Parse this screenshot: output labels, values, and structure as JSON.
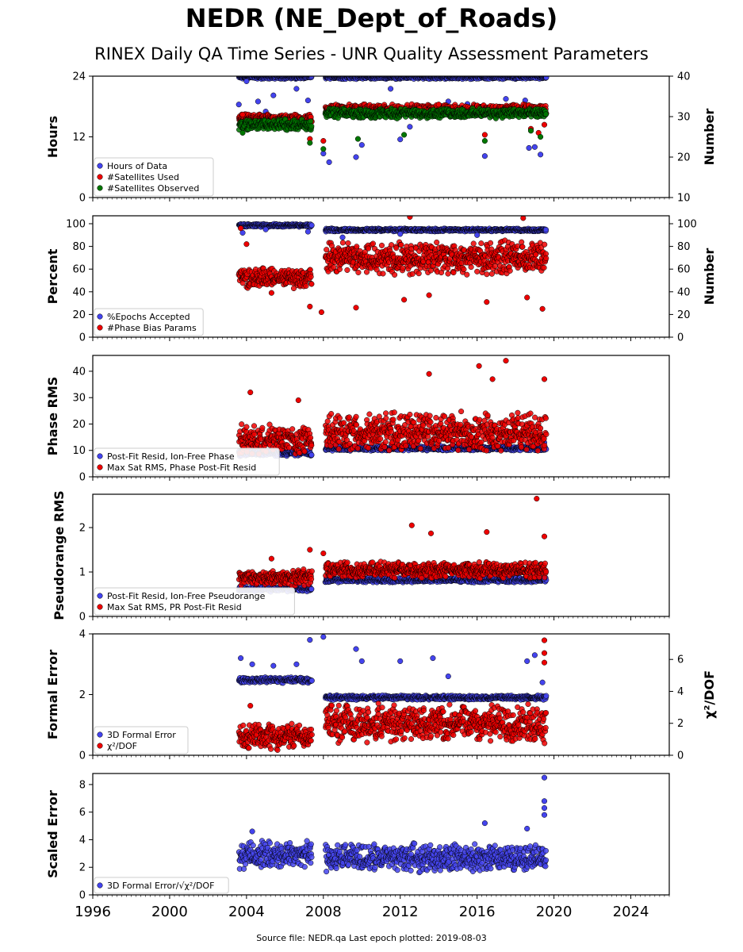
{
  "figure": {
    "title": "NEDR (NE_Dept_of_Roads)",
    "subtitle": "RINEX Daily QA Time Series - UNR Quality Assessment Parameters",
    "source": "Source file: NEDR.qa Last epoch plotted: 2019-08-03"
  },
  "colors": {
    "blue": "#4444ee",
    "red": "#ee0000",
    "green": "#007700",
    "edge": "#000000"
  },
  "chart_data": [
    {
      "type": "scatter",
      "ylabel": "Hours",
      "y2label": "Number",
      "ylim": [
        0,
        24
      ],
      "y2lim": [
        10,
        40
      ],
      "yticks": [
        "0",
        "12",
        "24"
      ],
      "y2ticks": [
        "10",
        "20",
        "30",
        "40"
      ],
      "legend_loc": "lower-left",
      "series": [
        {
          "name": "Hours of Data",
          "color": "#4444ee",
          "axis": "left",
          "segments": [
            {
              "x": [
                2003.6,
                2007.4
              ],
              "base": 23.8,
              "spread": 0.4,
              "outliers": [
                [
                  2003.6,
                  18.4
                ],
                [
                  2004.0,
                  23.0
                ],
                [
                  2004.6,
                  19.0
                ],
                [
                  2005.0,
                  17.0
                ],
                [
                  2005.4,
                  20.2
                ],
                [
                  2006.6,
                  21.5
                ],
                [
                  2007.2,
                  19.2
                ]
              ]
            },
            {
              "x": [
                2008.1,
                2019.6
              ],
              "base": 23.8,
              "spread": 0.4,
              "outliers": [
                [
                  2008.0,
                  8.7
                ],
                [
                  2008.3,
                  7.0
                ],
                [
                  2009.7,
                  8.0
                ],
                [
                  2010.0,
                  10.4
                ],
                [
                  2011.5,
                  21.5
                ],
                [
                  2012.0,
                  11.5
                ],
                [
                  2012.5,
                  14.0
                ],
                [
                  2013.4,
                  18.0
                ],
                [
                  2014.5,
                  19.0
                ],
                [
                  2015.5,
                  18.5
                ],
                [
                  2016.4,
                  8.2
                ],
                [
                  2017.5,
                  19.5
                ],
                [
                  2018.5,
                  19.2
                ],
                [
                  2018.7,
                  9.8
                ],
                [
                  2019.0,
                  10.0
                ],
                [
                  2019.3,
                  8.5
                ]
              ]
            }
          ]
        },
        {
          "name": "#Satellites Used",
          "color": "#ee0000",
          "axis": "right",
          "segments": [
            {
              "x": [
                2003.6,
                2007.4
              ],
              "base": 29.5,
              "spread": 1.2,
              "outliers": [
                [
                  2007.3,
                  24.5
                ],
                [
                  2003.8,
                  30.5
                ]
              ]
            },
            {
              "x": [
                2008.1,
                2019.6
              ],
              "base": 31.8,
              "spread": 1.4,
              "outliers": [
                [
                  2008.0,
                  24.0
                ],
                [
                  2011.0,
                  31.0
                ],
                [
                  2013.0,
                  32.0
                ],
                [
                  2014.0,
                  33.0
                ],
                [
                  2016.4,
                  25.5
                ],
                [
                  2018.8,
                  27.0
                ],
                [
                  2019.2,
                  26.0
                ],
                [
                  2019.5,
                  28.0
                ]
              ]
            }
          ]
        },
        {
          "name": "#Satellites Observed",
          "color": "#007700",
          "axis": "right",
          "segments": [
            {
              "x": [
                2003.6,
                2007.4
              ],
              "base": 28.0,
              "spread": 1.6,
              "outliers": [
                [
                  2007.3,
                  23.5
                ],
                [
                  2003.8,
                  26.0
                ]
              ]
            },
            {
              "x": [
                2008.1,
                2019.6
              ],
              "base": 30.8,
              "spread": 1.3,
              "outliers": [
                [
                  2008.0,
                  22.0
                ],
                [
                  2009.8,
                  24.5
                ],
                [
                  2012.2,
                  25.5
                ],
                [
                  2016.4,
                  24.0
                ],
                [
                  2018.8,
                  26.5
                ],
                [
                  2019.3,
                  25.0
                ]
              ]
            }
          ]
        }
      ]
    },
    {
      "type": "scatter",
      "ylabel": "Percent",
      "y2label": "Number",
      "ylim": [
        0,
        107
      ],
      "y2lim": [
        0,
        107
      ],
      "yticks": [
        "0",
        "20",
        "40",
        "60",
        "80",
        "100"
      ],
      "y2ticks": [
        "0",
        "20",
        "40",
        "60",
        "80",
        "100"
      ],
      "legend_loc": "lower-left",
      "series": [
        {
          "name": "%Epochs Accepted",
          "color": "#4444ee",
          "axis": "left",
          "segments": [
            {
              "x": [
                2003.6,
                2007.4
              ],
              "base": 98.5,
              "spread": 1.5,
              "outliers": [
                [
                  2003.8,
                  92.0
                ],
                [
                  2005.0,
                  95.0
                ],
                [
                  2007.2,
                  93.0
                ]
              ]
            },
            {
              "x": [
                2008.1,
                2019.6
              ],
              "base": 94.5,
              "spread": 1.5,
              "outliers": [
                [
                  2009.0,
                  88.0
                ],
                [
                  2012.0,
                  91.0
                ],
                [
                  2016.0,
                  90.0
                ]
              ]
            }
          ]
        },
        {
          "name": "#Phase Bias Params",
          "color": "#ee0000",
          "axis": "right",
          "segments": [
            {
              "x": [
                2003.6,
                2007.4
              ],
              "base": 52.0,
              "spread": 10.0,
              "outliers": [
                [
                  2004.0,
                  82.0
                ],
                [
                  2003.7,
                  96.0
                ],
                [
                  2007.3,
                  27.0
                ],
                [
                  2005.3,
                  39.0
                ]
              ]
            },
            {
              "x": [
                2008.1,
                2019.6
              ],
              "base": 70.0,
              "spread": 16.0,
              "outliers": [
                [
                  2007.9,
                  22.0
                ],
                [
                  2009.7,
                  26.0
                ],
                [
                  2012.2,
                  33.0
                ],
                [
                  2013.5,
                  37.0
                ],
                [
                  2016.5,
                  31.0
                ],
                [
                  2018.6,
                  35.0
                ],
                [
                  2019.4,
                  25.0
                ],
                [
                  2012.5,
                  106.0
                ],
                [
                  2018.4,
                  105.0
                ]
              ]
            }
          ]
        }
      ]
    },
    {
      "type": "scatter",
      "ylabel": "Phase RMS",
      "ylim": [
        0,
        46
      ],
      "yticks": [
        "0",
        "10",
        "20",
        "30",
        "40"
      ],
      "legend_loc": "lower-left",
      "series": [
        {
          "name": "Post-Fit Resid, Ion-Free Phase",
          "color": "#4444ee",
          "axis": "left",
          "segments": [
            {
              "x": [
                2003.6,
                2007.4
              ],
              "base": 9.0,
              "spread": 1.2,
              "outliers": []
            },
            {
              "x": [
                2008.1,
                2019.6
              ],
              "base": 10.8,
              "spread": 1.0,
              "outliers": [
                [
                  2019.5,
                  13.0
                ]
              ]
            }
          ]
        },
        {
          "name": "Max Sat RMS, Phase Post-Fit Resid",
          "color": "#ee0000",
          "axis": "left",
          "segments": [
            {
              "x": [
                2003.6,
                2007.4
              ],
              "base": 14.0,
              "spread": 6.0,
              "outliers": [
                [
                  2004.2,
                  32.0
                ],
                [
                  2006.7,
                  29.0
                ]
              ]
            },
            {
              "x": [
                2008.1,
                2019.6
              ],
              "base": 17.0,
              "spread": 8.0,
              "outliers": [
                [
                  2013.5,
                  39.0
                ],
                [
                  2016.1,
                  42.0
                ],
                [
                  2016.8,
                  37.0
                ],
                [
                  2017.5,
                  44.0
                ],
                [
                  2019.5,
                  37.0
                ]
              ]
            }
          ]
        }
      ]
    },
    {
      "type": "scatter",
      "ylabel": "Pseudorange RMS",
      "ylim": [
        0,
        2.75
      ],
      "yticks": [
        "0",
        "1",
        "2"
      ],
      "legend_loc": "lower-left",
      "series": [
        {
          "name": "Post-Fit Resid, Ion-Free Pseudorange",
          "color": "#4444ee",
          "axis": "left",
          "segments": [
            {
              "x": [
                2003.6,
                2007.4
              ],
              "base": 0.62,
              "spread": 0.07,
              "outliers": []
            },
            {
              "x": [
                2008.1,
                2019.6
              ],
              "base": 0.82,
              "spread": 0.06,
              "outliers": [
                [
                  2019.5,
                  0.85
                ]
              ]
            }
          ]
        },
        {
          "name": "Max Sat RMS, PR Post-Fit Resid",
          "color": "#ee0000",
          "axis": "left",
          "segments": [
            {
              "x": [
                2003.6,
                2007.4
              ],
              "base": 0.88,
              "spread": 0.2,
              "outliers": [
                [
                  2007.3,
                  1.5
                ],
                [
                  2005.3,
                  1.3
                ]
              ]
            },
            {
              "x": [
                2008.1,
                2019.6
              ],
              "base": 1.05,
              "spread": 0.2,
              "outliers": [
                [
                  2008.0,
                  1.42
                ],
                [
                  2012.6,
                  2.05
                ],
                [
                  2013.6,
                  1.87
                ],
                [
                  2016.5,
                  1.9
                ],
                [
                  2019.1,
                  2.65
                ],
                [
                  2019.5,
                  1.8
                ]
              ]
            }
          ]
        }
      ]
    },
    {
      "type": "scatter",
      "ylabel": "Formal Error",
      "y2label": "χ²/DOF",
      "ylim": [
        0,
        4
      ],
      "y2lim": [
        0,
        7.6
      ],
      "yticks": [
        "0",
        "2",
        "4"
      ],
      "y2ticks": [
        "0",
        "2",
        "4",
        "6"
      ],
      "legend_loc": "lower-left",
      "series": [
        {
          "name": "3D Formal Error",
          "color": "#4444ee",
          "axis": "left",
          "segments": [
            {
              "x": [
                2003.6,
                2007.4
              ],
              "base": 2.48,
              "spread": 0.1,
              "outliers": [
                [
                  2003.7,
                  3.2
                ],
                [
                  2004.3,
                  3.0
                ],
                [
                  2005.4,
                  2.95
                ],
                [
                  2006.6,
                  3.0
                ],
                [
                  2007.3,
                  3.8
                ],
                [
                  2008.0,
                  3.9
                ]
              ]
            },
            {
              "x": [
                2008.1,
                2019.6
              ],
              "base": 1.9,
              "spread": 0.08,
              "outliers": [
                [
                  2009.7,
                  3.5
                ],
                [
                  2010.0,
                  3.1
                ],
                [
                  2012.0,
                  3.1
                ],
                [
                  2013.7,
                  3.2
                ],
                [
                  2014.5,
                  2.6
                ],
                [
                  2018.6,
                  3.1
                ],
                [
                  2019.0,
                  3.3
                ],
                [
                  2019.4,
                  2.4
                ]
              ]
            }
          ]
        },
        {
          "name": "χ²/DOF",
          "color": "#ee0000",
          "axis": "right",
          "segments": [
            {
              "x": [
                2003.6,
                2007.4
              ],
              "base": 1.2,
              "spread": 0.9,
              "outliers": [
                [
                  2004.2,
                  3.1
                ]
              ]
            },
            {
              "x": [
                2008.1,
                2019.6
              ],
              "base": 2.0,
              "spread": 1.3,
              "outliers": [
                [
                  2019.5,
                  7.2
                ],
                [
                  2019.5,
                  6.4
                ],
                [
                  2019.5,
                  5.8
                ]
              ]
            }
          ]
        }
      ]
    },
    {
      "type": "scatter",
      "ylabel": "Scaled Error",
      "ylim": [
        0,
        8.8
      ],
      "yticks": [
        "0",
        "2",
        "4",
        "6",
        "8"
      ],
      "legend_loc": "lower-left",
      "series": [
        {
          "name": "3D Formal Error/√χ²/DOF",
          "color": "#4444ee",
          "axis": "left",
          "segments": [
            {
              "x": [
                2003.6,
                2007.4
              ],
              "base": 2.9,
              "spread": 1.1,
              "outliers": [
                [
                  2004.3,
                  4.6
                ]
              ]
            },
            {
              "x": [
                2008.1,
                2019.6
              ],
              "base": 2.7,
              "spread": 1.1,
              "outliers": [
                [
                  2016.4,
                  5.2
                ],
                [
                  2018.6,
                  4.8
                ],
                [
                  2019.5,
                  8.5
                ],
                [
                  2019.5,
                  6.8
                ],
                [
                  2019.5,
                  6.3
                ],
                [
                  2019.5,
                  5.8
                ]
              ]
            }
          ]
        }
      ]
    }
  ],
  "xaxis": {
    "xlim": [
      1996,
      2026
    ],
    "ticks": [
      "1996",
      "2000",
      "2004",
      "2008",
      "2012",
      "2016",
      "2020",
      "2024"
    ]
  }
}
